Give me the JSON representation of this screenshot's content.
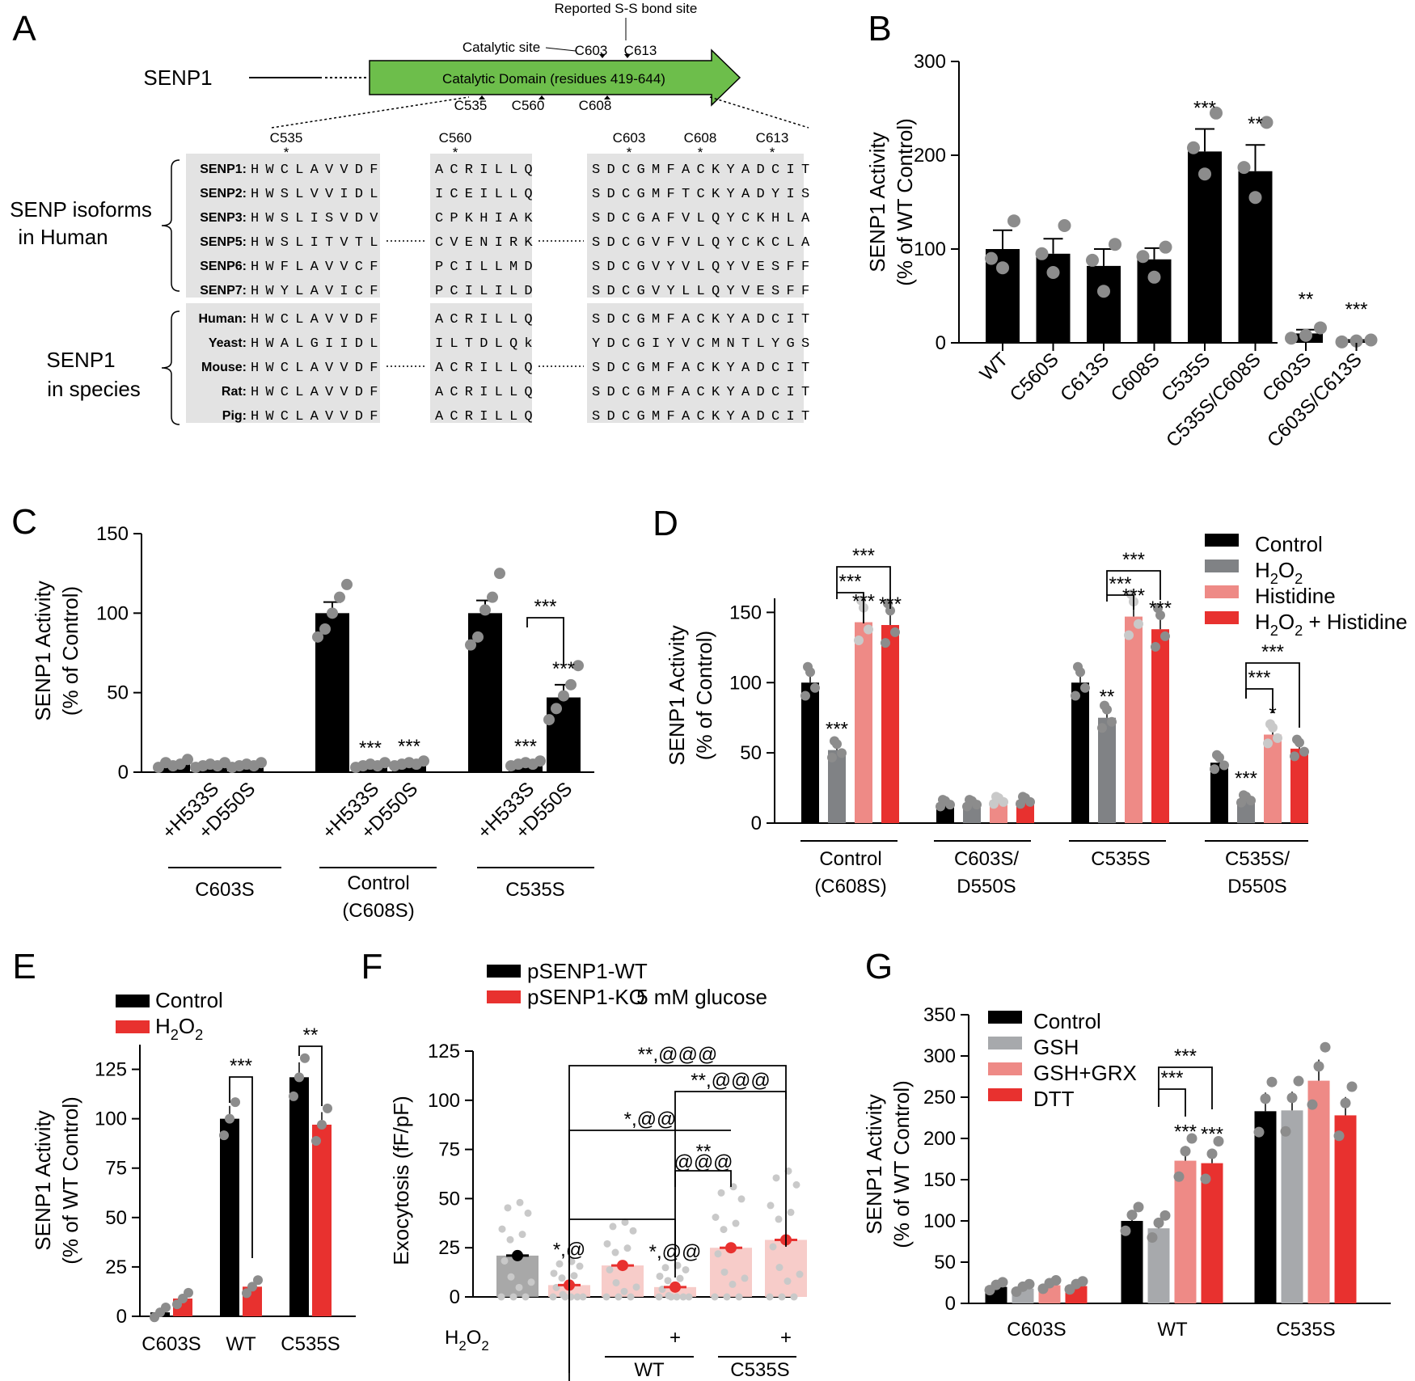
{
  "colors": {
    "black": "#000000",
    "gray": "#808285",
    "lightgray": "#a7a9ac",
    "pink": "#ee8a86",
    "red": "#e8312f",
    "green": "#6dbe4b",
    "seqbg": "#e3e3e3",
    "dot": "#8c8c8c"
  },
  "panelA": {
    "letter": "A",
    "protein": "SENP1",
    "domain_label": "Catalytic Domain (residues 419-644)",
    "top_labels": {
      "reported": "Reported S-S bond site",
      "catalytic": "Catalytic site",
      "c603": "C603",
      "c613": "C613"
    },
    "bottom_labels": [
      "C535",
      "C560",
      "C608"
    ],
    "col_headers": [
      "C535",
      "C560",
      "C603",
      "C608",
      "C613"
    ],
    "star": "*",
    "group1_label": [
      "SENP isoforms",
      "in Human"
    ],
    "group2_label": [
      "SENP1",
      "in species"
    ],
    "rows": [
      {
        "name": "SENP1:",
        "s1": "HWCLAVVDF",
        "s2": "ACRILLQ",
        "s3": "SDCGMFACKYADCIT"
      },
      {
        "name": "SENP2:",
        "s1": "HWSLVVIDL",
        "s2": "ICEILLQ",
        "s3": "SDCGMFTCKYADYIS"
      },
      {
        "name": "SENP3:",
        "s1": "HWSLISVDV",
        "s2": "CPKHIAK",
        "s3": "SDCGAFVLQYCKHLA"
      },
      {
        "name": "SENP5:",
        "s1": "HWSLITVTL",
        "s2": "CVENIRK",
        "s3": "SDCGVFVLQYCKCLA"
      },
      {
        "name": "SENP6:",
        "s1": "HWFLAVVCF",
        "s2": "PCILLMD",
        "s3": "SDCGVYVLQYVESFF"
      },
      {
        "name": "SENP7:",
        "s1": "HWYLAVICF",
        "s2": "PCILILD",
        "s3": "SDCGVYLLQYVESFF"
      },
      {
        "name": "Human:",
        "s1": "HWCLAVVDF",
        "s2": "ACRILLQ",
        "s3": "SDCGMFACKYADCIT"
      },
      {
        "name": "Yeast:",
        "s1": "HWALGIIDL",
        "s2": "ILTDLQk",
        "s3": "YDCGIYVCMNTLYGS"
      },
      {
        "name": "Mouse:",
        "s1": "HWCLAVVDF",
        "s2": "ACRILLQ",
        "s3": "SDCGMFACKYADCIT"
      },
      {
        "name": "Rat:",
        "s1": "HWCLAVVDF",
        "s2": "ACRILLQ",
        "s3": "SDCGMFACKYADCIT"
      },
      {
        "name": "Pig:",
        "s1": "HWCLAVVDF",
        "s2": "ACRILLQ",
        "s3": "SDCGMFACKYADCIT"
      }
    ]
  },
  "chart_data": [
    {
      "panel": "B",
      "type": "bar",
      "ylabel": "SENP1 Activity",
      "ylabel2": "(% of WT Control)",
      "ylim": [
        0,
        300
      ],
      "yticks": [
        0,
        100,
        200,
        300
      ],
      "categories": [
        "WT",
        "C560S",
        "C613S",
        "C608S",
        "C535S",
        "C535S/C608S",
        "C603S",
        "C603S/C613S"
      ],
      "values": [
        100,
        95,
        82,
        89,
        204,
        183,
        10,
        2
      ],
      "errors": [
        20,
        16,
        18,
        12,
        24,
        28,
        4,
        1
      ],
      "points": [
        [
          80,
          90,
          130
        ],
        [
          75,
          95,
          125
        ],
        [
          55,
          88,
          105
        ],
        [
          70,
          92,
          102
        ],
        [
          180,
          208,
          245
        ],
        [
          155,
          187,
          235
        ],
        [
          5,
          8,
          16
        ],
        [
          1,
          2,
          3
        ]
      ],
      "stars": [
        "",
        "",
        "",
        "",
        "***",
        "**",
        "**",
        "***"
      ]
    },
    {
      "panel": "C",
      "type": "bar",
      "ylabel": "SENP1 Activity",
      "ylabel2": "(% of Control)",
      "ylim": [
        0,
        150
      ],
      "yticks": [
        0,
        50,
        100,
        150
      ],
      "categories": [
        "",
        "+H533S",
        "+D550S",
        "",
        "+H533S",
        "+D550S",
        "",
        "+H533S",
        "+D550S"
      ],
      "groups": [
        "C603S",
        "Control",
        "(C608S)",
        "C535S"
      ],
      "values": [
        5,
        4,
        4,
        100,
        4,
        5,
        100,
        5,
        47
      ],
      "errors": [
        1,
        1,
        1,
        7,
        1,
        1,
        8,
        1,
        8
      ],
      "stars": [
        "",
        "",
        "",
        "",
        "***",
        "***",
        "",
        "***",
        "***"
      ],
      "bracket": "***"
    },
    {
      "panel": "D",
      "type": "bar",
      "ylabel": "SENP1 Activity",
      "ylabel2": "(% of Control)",
      "ylim": [
        0,
        160
      ],
      "yticks": [
        0,
        50,
        100,
        150
      ],
      "legend": [
        "Control",
        "H2O2",
        "Histidine",
        "H2O2 + Histidine"
      ],
      "groups": [
        "Control",
        "(C608S)",
        "C603S/",
        "D550S",
        "C535S",
        "C535S/",
        "D550S"
      ],
      "series": [
        {
          "name": "Control",
          "values": [
            100,
            14,
            100,
            43
          ]
        },
        {
          "name": "H2O2",
          "values": [
            52,
            14,
            75,
            17
          ]
        },
        {
          "name": "Histidine",
          "values": [
            143,
            16,
            147,
            63
          ]
        },
        {
          "name": "H2O2 + Histidine",
          "values": [
            141,
            16,
            138,
            53
          ]
        }
      ],
      "stars": [
        [
          "",
          "***",
          "***",
          "***"
        ],
        [
          "",
          "",
          "",
          ""
        ],
        [
          "",
          "**",
          "***",
          "***"
        ],
        [
          "",
          "***",
          "*",
          ""
        ]
      ],
      "brackets": [
        "***",
        "***",
        "***",
        "***",
        "***",
        "***"
      ]
    },
    {
      "panel": "E",
      "type": "bar",
      "ylabel": "SENP1 Activity",
      "ylabel2": "(% of WT Control)",
      "ylim": [
        0,
        137.5
      ],
      "yticks": [
        0,
        25,
        50,
        75,
        100,
        125
      ],
      "categories": [
        "C603S",
        "WT",
        "C535S"
      ],
      "legend": [
        "Control",
        "H2O2"
      ],
      "series": [
        {
          "name": "Control",
          "values": [
            2,
            100,
            121
          ]
        },
        {
          "name": "H2O2",
          "values": [
            9,
            15,
            97
          ]
        }
      ],
      "brackets": [
        "***",
        "**"
      ]
    },
    {
      "panel": "F",
      "type": "bar",
      "ylabel": "Exocytosis (fF/pF)",
      "ylim": [
        0,
        125
      ],
      "yticks": [
        0,
        25,
        50,
        75,
        100,
        125
      ],
      "legend": [
        "pSENP1-WT",
        "pSENP1-KO"
      ],
      "condition": "5 mM glucose",
      "h2o2_label": "H2O2",
      "plus": "+",
      "groups": [
        "WT",
        "C535S"
      ],
      "values": [
        21,
        6,
        16,
        5,
        25,
        29
      ],
      "stars": [
        "",
        "*,@",
        "",
        "*,@@",
        "",
        ""
      ],
      "brackets": [
        "**,@@@",
        "**,@@@",
        "*,@@",
        "**",
        "@@@"
      ]
    },
    {
      "panel": "G",
      "type": "bar",
      "ylabel": "SENP1 Activity",
      "ylabel2": "(% of WT Control)",
      "ylim": [
        0,
        350
      ],
      "yticks": [
        0,
        50,
        100,
        150,
        200,
        250,
        300,
        350
      ],
      "categories": [
        "C603S",
        "WT",
        "C535S"
      ],
      "legend": [
        "Control",
        "GSH",
        "GSH+GRX",
        "DTT"
      ],
      "series": [
        {
          "name": "Control",
          "values": [
            20,
            100,
            233
          ]
        },
        {
          "name": "GSH",
          "values": [
            18,
            91,
            234
          ]
        },
        {
          "name": "GSH+GRX",
          "values": [
            22,
            173,
            270
          ]
        },
        {
          "name": "DTT",
          "values": [
            21,
            170,
            228
          ]
        }
      ],
      "stars": [
        "",
        "",
        "***",
        "***"
      ],
      "brackets": [
        "***",
        "***"
      ]
    }
  ]
}
